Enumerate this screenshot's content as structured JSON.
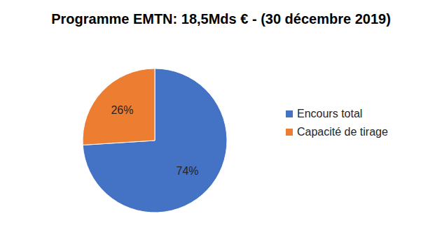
{
  "chart_data": {
    "type": "pie",
    "title": "Programme EMTN: 18,5Mds € - (30 décembre 2019)",
    "categories": [
      "Encours total",
      "Capacité de tirage"
    ],
    "values": [
      74,
      26
    ],
    "value_labels": [
      "74%",
      "26%"
    ],
    "colors": [
      "#4472c4",
      "#ed7d31"
    ],
    "data_labels": true,
    "legend": "right"
  }
}
